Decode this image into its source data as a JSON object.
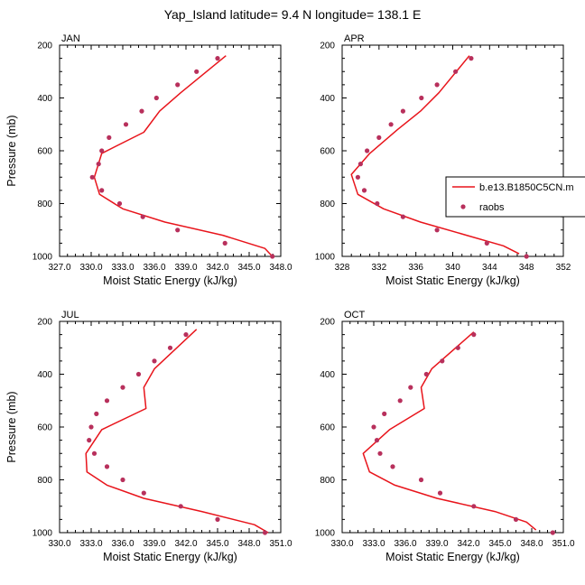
{
  "figure": {
    "title": "Yap_Island  latitude= 9.4 N longitude= 138.1 E"
  },
  "legend": {
    "model_label": "b.e13.B1850C5CN.m",
    "obs_label": "raobs"
  },
  "colors": {
    "model_line": "#e8141b",
    "obs_marker": "#b8305c"
  },
  "chart_data": [
    {
      "type": "line",
      "panel": "JAN",
      "xlabel": "Moist Static Energy (kJ/kg)",
      "ylabel": "Pressure (mb)",
      "xlim": [
        327.0,
        348.0
      ],
      "ylim": [
        1000,
        200
      ],
      "y_inverted": true,
      "xticks": [
        327.0,
        330.0,
        333.0,
        336.0,
        339.0,
        342.0,
        345.0,
        348.0
      ],
      "xtick_labels": [
        "327.0",
        "330.0",
        "333.0",
        "336.0",
        "339.0",
        "342.0",
        "345.0",
        "348.0"
      ],
      "yticks": [
        200,
        400,
        600,
        800,
        1000
      ],
      "series": [
        {
          "name": "b.e13.B1850C5CN.m",
          "kind": "line",
          "points": [
            [
              342.8,
              240
            ],
            [
              338.5,
              380
            ],
            [
              336.5,
              450
            ],
            [
              335.0,
              530
            ],
            [
              331.0,
              610
            ],
            [
              330.3,
              700
            ],
            [
              330.8,
              765
            ],
            [
              333.0,
              820
            ],
            [
              337.0,
              870
            ],
            [
              342.5,
              920
            ],
            [
              346.5,
              970
            ],
            [
              347.2,
              1000
            ]
          ]
        },
        {
          "name": "raobs",
          "kind": "marker",
          "points": [
            [
              342.0,
              250
            ],
            [
              340.0,
              300
            ],
            [
              338.2,
              350
            ],
            [
              336.2,
              400
            ],
            [
              334.8,
              450
            ],
            [
              333.3,
              500
            ],
            [
              331.7,
              550
            ],
            [
              331.0,
              600
            ],
            [
              330.7,
              650
            ],
            [
              330.1,
              700
            ],
            [
              331.0,
              750
            ],
            [
              332.7,
              800
            ],
            [
              334.9,
              850
            ],
            [
              338.2,
              900
            ],
            [
              342.7,
              950
            ],
            [
              347.2,
              1000
            ]
          ]
        }
      ]
    },
    {
      "type": "line",
      "panel": "APR",
      "xlabel": "Moist Static Energy (kJ/kg)",
      "ylabel": "",
      "xlim": [
        328,
        352
      ],
      "ylim": [
        1000,
        200
      ],
      "y_inverted": true,
      "xticks": [
        328,
        332,
        336,
        340,
        344,
        348,
        352
      ],
      "xtick_labels": [
        "328",
        "332",
        "336",
        "340",
        "344",
        "348",
        "352"
      ],
      "yticks": [
        200,
        400,
        600,
        800,
        1000
      ],
      "series": [
        {
          "name": "b.e13.B1850C5CN.m",
          "kind": "line",
          "points": [
            [
              341.8,
              240
            ],
            [
              338.5,
              380
            ],
            [
              336.5,
              450
            ],
            [
              334.0,
              520
            ],
            [
              331.0,
              610
            ],
            [
              329.0,
              690
            ],
            [
              329.7,
              765
            ],
            [
              332.5,
              820
            ],
            [
              336.5,
              870
            ],
            [
              341.5,
              920
            ],
            [
              345.5,
              960
            ],
            [
              347.2,
              990
            ]
          ]
        },
        {
          "name": "raobs",
          "kind": "marker",
          "points": [
            [
              342.0,
              250
            ],
            [
              340.3,
              300
            ],
            [
              338.3,
              350
            ],
            [
              336.6,
              400
            ],
            [
              334.6,
              450
            ],
            [
              333.3,
              500
            ],
            [
              332.0,
              550
            ],
            [
              330.7,
              600
            ],
            [
              330.0,
              650
            ],
            [
              329.7,
              700
            ],
            [
              330.4,
              750
            ],
            [
              331.8,
              800
            ],
            [
              334.6,
              850
            ],
            [
              338.3,
              900
            ],
            [
              343.7,
              950
            ],
            [
              348.0,
              1000
            ]
          ]
        }
      ]
    },
    {
      "type": "line",
      "panel": "JUL",
      "xlabel": "Moist Static Energy (kJ/kg)",
      "ylabel": "Pressure (mb)",
      "xlim": [
        330.0,
        351.0
      ],
      "ylim": [
        1000,
        200
      ],
      "y_inverted": true,
      "xticks": [
        330.0,
        333.0,
        336.0,
        339.0,
        342.0,
        345.0,
        348.0,
        351.0
      ],
      "xtick_labels": [
        "330.0",
        "333.0",
        "336.0",
        "339.0",
        "342.0",
        "345.0",
        "348.0",
        "351.0"
      ],
      "yticks": [
        200,
        400,
        600,
        800,
        1000
      ],
      "series": [
        {
          "name": "b.e13.B1850C5CN.m",
          "kind": "line",
          "points": [
            [
              343.0,
              230
            ],
            [
              339.0,
              380
            ],
            [
              338.0,
              450
            ],
            [
              338.2,
              530
            ],
            [
              334.0,
              610
            ],
            [
              332.5,
              700
            ],
            [
              332.6,
              770
            ],
            [
              334.5,
              820
            ],
            [
              338.0,
              870
            ],
            [
              343.5,
              920
            ],
            [
              348.5,
              970
            ],
            [
              349.8,
              1000
            ]
          ]
        },
        {
          "name": "raobs",
          "kind": "marker",
          "points": [
            [
              342.0,
              250
            ],
            [
              340.5,
              300
            ],
            [
              339.0,
              350
            ],
            [
              337.5,
              400
            ],
            [
              336.0,
              450
            ],
            [
              334.5,
              500
            ],
            [
              333.5,
              550
            ],
            [
              333.0,
              600
            ],
            [
              332.8,
              650
            ],
            [
              333.3,
              700
            ],
            [
              334.5,
              750
            ],
            [
              336.0,
              800
            ],
            [
              338.0,
              850
            ],
            [
              341.5,
              900
            ],
            [
              345.0,
              950
            ],
            [
              349.5,
              1000
            ]
          ]
        }
      ]
    },
    {
      "type": "line",
      "panel": "OCT",
      "xlabel": "Moist Static Energy (kJ/kg)",
      "ylabel": "",
      "xlim": [
        330.0,
        351.0
      ],
      "ylim": [
        1000,
        200
      ],
      "y_inverted": true,
      "xticks": [
        330.0,
        333.0,
        336.0,
        339.0,
        342.0,
        345.0,
        348.0,
        351.0
      ],
      "xtick_labels": [
        "330.0",
        "333.0",
        "336.0",
        "339.0",
        "342.0",
        "345.0",
        "348.0",
        "351.0"
      ],
      "yticks": [
        200,
        400,
        600,
        800,
        1000
      ],
      "series": [
        {
          "name": "b.e13.B1850C5CN.m",
          "kind": "line",
          "points": [
            [
              342.5,
              240
            ],
            [
              338.5,
              380
            ],
            [
              337.5,
              450
            ],
            [
              337.8,
              530
            ],
            [
              334.5,
              610
            ],
            [
              332.0,
              700
            ],
            [
              332.6,
              770
            ],
            [
              335.0,
              820
            ],
            [
              339.0,
              870
            ],
            [
              344.5,
              920
            ],
            [
              347.5,
              960
            ],
            [
              348.4,
              990
            ]
          ]
        },
        {
          "name": "raobs",
          "kind": "marker",
          "points": [
            [
              342.5,
              250
            ],
            [
              341.0,
              300
            ],
            [
              339.5,
              350
            ],
            [
              338.0,
              400
            ],
            [
              336.5,
              450
            ],
            [
              335.5,
              500
            ],
            [
              334.0,
              550
            ],
            [
              333.0,
              600
            ],
            [
              333.3,
              650
            ],
            [
              333.6,
              700
            ],
            [
              334.8,
              750
            ],
            [
              337.5,
              800
            ],
            [
              339.3,
              850
            ],
            [
              342.5,
              900
            ],
            [
              346.5,
              950
            ],
            [
              350.0,
              1000
            ]
          ]
        }
      ]
    }
  ]
}
